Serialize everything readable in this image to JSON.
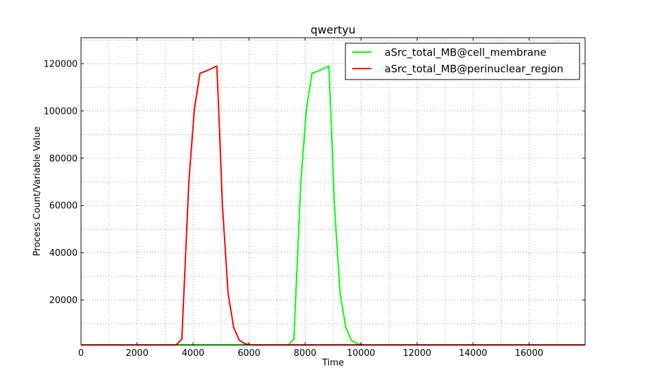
{
  "chart_data": {
    "type": "line",
    "title": "qwertyu",
    "xlabel": "Time",
    "ylabel": "Process Count/Variable Value",
    "xlim": [
      0,
      18000
    ],
    "ylim": [
      1000,
      131000
    ],
    "xticks": [
      0,
      2000,
      4000,
      6000,
      8000,
      10000,
      12000,
      14000,
      16000
    ],
    "yticks": [
      20000,
      40000,
      60000,
      80000,
      100000,
      120000
    ],
    "grid": true,
    "legend_position": "top-right",
    "series": [
      {
        "name": "aSrc_total_MB@cell_membrane",
        "color": "#00ff00",
        "points": [
          [
            0,
            1000
          ],
          [
            7400,
            1000
          ],
          [
            7600,
            3500
          ],
          [
            7850,
            70000
          ],
          [
            8050,
            101000
          ],
          [
            8250,
            116000
          ],
          [
            8450,
            116800
          ],
          [
            8850,
            119000
          ],
          [
            8950,
            90000
          ],
          [
            9050,
            60000
          ],
          [
            9250,
            23000
          ],
          [
            9450,
            8500
          ],
          [
            9650,
            3000
          ],
          [
            9850,
            1500
          ],
          [
            10100,
            1000
          ],
          [
            18000,
            1000
          ]
        ]
      },
      {
        "name": "aSrc_total_MB@perinuclear_region",
        "color": "#ff0000",
        "points": [
          [
            0,
            1000
          ],
          [
            3400,
            1000
          ],
          [
            3600,
            3500
          ],
          [
            3850,
            70000
          ],
          [
            4050,
            101000
          ],
          [
            4250,
            116000
          ],
          [
            4450,
            116800
          ],
          [
            4850,
            119000
          ],
          [
            4950,
            90000
          ],
          [
            5050,
            60000
          ],
          [
            5250,
            23000
          ],
          [
            5450,
            8500
          ],
          [
            5650,
            3000
          ],
          [
            5850,
            1500
          ],
          [
            6100,
            1000
          ],
          [
            18000,
            1000
          ]
        ]
      }
    ]
  }
}
